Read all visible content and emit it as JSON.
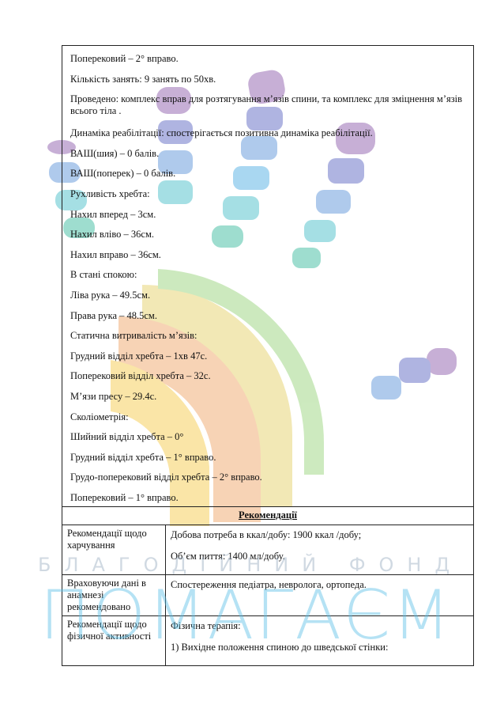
{
  "lines": [
    "Поперековий – 2° вправо.",
    "Кількість занять: 9 занять по 50хв.",
    "Проведено: комплекс вправ для розтягування м’язів спини, та комплекс для зміцнення м’язів всього тіла .",
    "Динаміка реабілітації: спостерігається позитивна динаміка реабілітації.",
    "ВАШ(шия) – 0 балів.",
    "ВАШ(поперек) – 0 балів.",
    "Рухливість хребта:",
    "Нахил вперед – 3см.",
    "Нахил вліво – 36см.",
    "Нахил вправо – 36см.",
    "В стані спокою:",
    "Ліва рука – 49.5см.",
    "Права рука – 48.5см.",
    "Статична витривалість м’язів:",
    "Грудний відділ хребта – 1хв 47с.",
    "Поперековий відділ хребта – 32с.",
    "М’язи пресу – 29.4с.",
    "Сколіометрія:",
    "Шийний відділ хребта – 0°",
    "Грудний відділ хребта – 1° вправо.",
    "Грудо-поперековий відділ хребта – 2° вправо.",
    "Поперековий – 1° вправо."
  ],
  "recommendations": {
    "title": "Рекомендації",
    "rows": [
      {
        "label": "Рекомендації щодо харчування",
        "content": [
          "Добова потреба в ккал/добу: 1900 ккал /добу;",
          "Об’єм пиття: 1400 мл/добу."
        ]
      },
      {
        "label": "Враховуючи дані в анамнезі рекомендовано",
        "content": [
          "Спостереження педіатра, невролога, ортопеда."
        ]
      },
      {
        "label": "Рекомендації щодо фізичної активності",
        "content": [
          "Фізична терапія:",
          "1)  Вихідне положення спиною до шведської стінки:"
        ]
      }
    ]
  },
  "watermark": {
    "subtitle": "БЛАГОДІЙНИЙ ФОНД",
    "title": "ПОМАГАЄМ"
  }
}
